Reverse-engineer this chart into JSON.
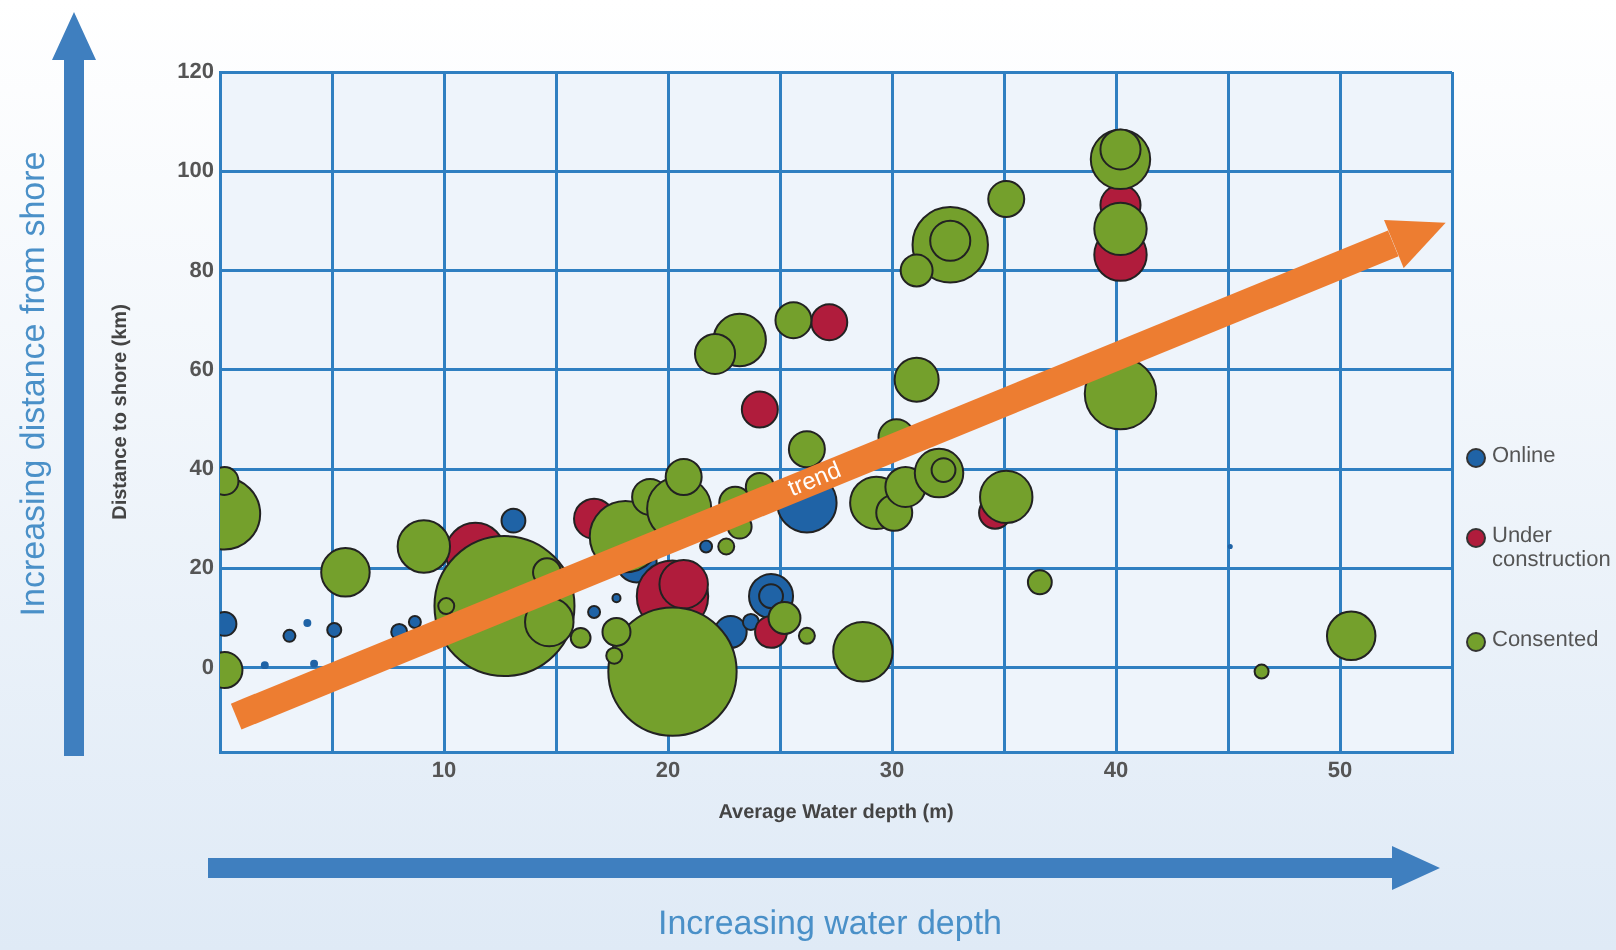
{
  "chart_data": {
    "type": "bubble",
    "xlabel": "Average Water depth (m)",
    "ylabel": "Distance to shore (km)",
    "annotations": [
      "Increasing distance from shore",
      "Increasing water depth"
    ],
    "xlim": [
      0,
      55
    ],
    "xticks": [
      {
        "value": 0,
        "label": null
      },
      {
        "value": 5,
        "label": null
      },
      10,
      {
        "value": 15,
        "label": null
      },
      20,
      {
        "value": 25,
        "label": null
      },
      30,
      {
        "value": 35,
        "label": null
      },
      40,
      {
        "value": 45,
        "label": null
      },
      50,
      {
        "value": 55,
        "label": null
      }
    ],
    "ylim": [
      -17,
      120
    ],
    "yticks": [
      0,
      20,
      40,
      60,
      80,
      100,
      120
    ],
    "grid": true,
    "legend": "right",
    "series": [
      {
        "name": "Online",
        "color": "#1f63a6",
        "x": [
          26.2,
          24.6,
          18.6,
          22.8,
          0.2,
          13.1,
          24.6,
          8.0,
          23.7,
          5.1,
          3.1,
          8.7,
          16.7,
          21.7,
          17.7,
          2.0,
          3.9,
          4.2,
          45.1
        ],
        "values": [
          33.2,
          14.4,
          21.2,
          7.2,
          8.8,
          29.6,
          14.4,
          7.2,
          9.2,
          7.6,
          6.4,
          9.2,
          11.2,
          24.4,
          14,
          0.5,
          9,
          0.8,
          24.4
        ],
        "sizes": [
          0.18,
          0.099,
          0.082,
          0.052,
          0.029,
          0.029,
          0.029,
          0.013,
          0.013,
          0.01,
          0.0073,
          0.0073,
          0.0073,
          0.0073,
          0.0033,
          0.0018,
          0.0018,
          0.0018,
          0.0005
        ]
      },
      {
        "name": "Under construction",
        "color": "#b01c3c",
        "x": [
          20.2,
          11.4,
          40.2,
          20.7,
          16.7,
          40.2,
          24.1,
          27.2,
          24.6,
          34.6
        ],
        "values": [
          14.4,
          23.2,
          83.2,
          16.8,
          30,
          93.2,
          52,
          69.6,
          7.2,
          31.2
        ],
        "sizes": [
          0.26,
          0.18,
          0.14,
          0.12,
          0.082,
          0.082,
          0.066,
          0.066,
          0.052,
          0.052
        ]
      },
      {
        "name": "Consented",
        "color": "#74a02c",
        "x": [
          12.7,
          20.2,
          0.2,
          0.2,
          0.2,
          5.6,
          9.1,
          10.1,
          14.6,
          14.7,
          16.1,
          17.7,
          17.6,
          18.1,
          19.2,
          20.5,
          20.7,
          22.6,
          23.0,
          23.2,
          24.1,
          26.2,
          25.2,
          26.2,
          28.7,
          29.3,
          30.1,
          30.2,
          30.6,
          32.1,
          32.3,
          35.1,
          36.6,
          40.2,
          40.2,
          40.2,
          40.2,
          35.1,
          32.6,
          32.6,
          31.1,
          25.6,
          31.1,
          23.2,
          22.1,
          50.5,
          46.5
        ],
        "values": [
          12.4,
          -0.8,
          31,
          37.6,
          -0.5,
          19.2,
          24.4,
          12.4,
          19.2,
          9.2,
          6,
          7.2,
          2.4,
          26.4,
          34.4,
          32,
          38.4,
          24.4,
          33.2,
          28.4,
          36.4,
          44,
          10,
          6.4,
          3.2,
          33.2,
          31.2,
          46.4,
          36.4,
          39.2,
          39.8,
          34.4,
          17.2,
          102.4,
          104.4,
          88.4,
          55.2,
          94.4,
          85.2,
          86,
          80,
          70,
          58,
          66,
          63.2,
          6.4,
          -0.8
        ],
        "sizes": [
          1,
          0.84,
          0.26,
          0.04,
          0.066,
          0.12,
          0.14,
          0.013,
          0.04,
          0.12,
          0.02,
          0.04,
          0.013,
          0.26,
          0.066,
          0.21,
          0.066,
          0.013,
          0.052,
          0.029,
          0.04,
          0.066,
          0.052,
          0.013,
          0.18,
          0.14,
          0.066,
          0.066,
          0.082,
          0.12,
          0.029,
          0.14,
          0.029,
          0.18,
          0.082,
          0.14,
          0.26,
          0.066,
          0.29,
          0.082,
          0.052,
          0.066,
          0.099,
          0.14,
          0.082,
          0.12,
          0.01
        ]
      },
      {
        "name": "trend",
        "type": "line",
        "color": "#ed7d31",
        "line_style": "solid",
        "x": [
          1.3,
          51.8
        ],
        "values": [
          -8.8,
          84.4
        ]
      }
    ]
  }
}
